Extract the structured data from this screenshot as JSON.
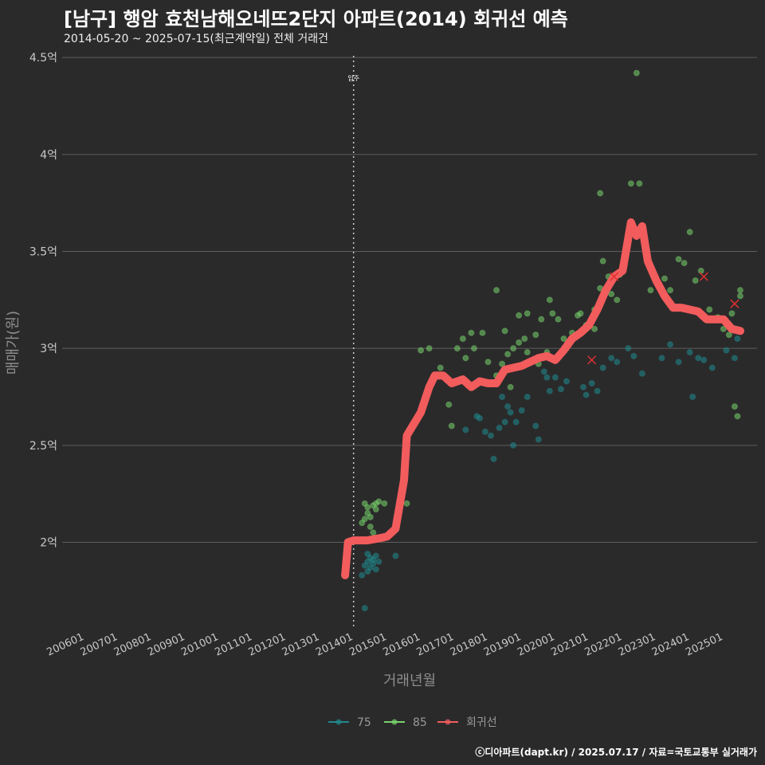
{
  "title": "[남구] 행암 효천남해오네뜨2단지 아파트(2014) 회귀선 예측",
  "subtitle": "2014-05-20 ~ 2025-07-15(최근계약일) 전체 거래건",
  "caption": "ⓒ디아파트(dapt.kr) / 2025.07.17 / 자료=국토교통부 실거래가",
  "colors": {
    "background": "#2b2a2b",
    "grid": "#5e5e5e",
    "s75": "#1f8a8e",
    "s85": "#77d36b",
    "reg": "#f25c5c",
    "cancel": "#e03030"
  },
  "chart_data": {
    "type": "scatter",
    "xlabel": "거래년월",
    "ylabel": "매매가(원)",
    "ylim": [
      1.55,
      4.55
    ],
    "xlim": [
      "2005-05-01",
      "2025-12-31"
    ],
    "grid": true,
    "legend_position": "bottom",
    "y_ticks": [
      {
        "value": 2.0,
        "label": "2억"
      },
      {
        "value": 2.5,
        "label": "2.5억"
      },
      {
        "value": 3.0,
        "label": "3억"
      },
      {
        "value": 3.5,
        "label": "3.5억"
      },
      {
        "value": 4.0,
        "label": "4억"
      },
      {
        "value": 4.5,
        "label": "4.5억"
      }
    ],
    "x_ticks": [
      "200601",
      "200701",
      "200801",
      "200901",
      "201001",
      "201101",
      "201201",
      "201301",
      "201401",
      "201501",
      "201601",
      "201701",
      "201801",
      "201901",
      "202001",
      "202101",
      "202201",
      "202301",
      "202401",
      "202501"
    ],
    "vline": {
      "x": "2014-01",
      "label": "입주"
    },
    "legend": [
      {
        "key": "75",
        "label": "75"
      },
      {
        "key": "85",
        "label": "85"
      },
      {
        "key": "reg",
        "label": "회귀선"
      }
    ],
    "series": [
      {
        "name": "75",
        "points": [
          [
            "2014-04",
            1.83
          ],
          [
            "2014-05",
            1.66
          ],
          [
            "2014-05",
            1.88
          ],
          [
            "2014-06",
            1.9
          ],
          [
            "2014-06",
            1.85
          ],
          [
            "2014-07",
            1.92
          ],
          [
            "2014-07",
            1.87
          ],
          [
            "2014-08",
            1.89
          ],
          [
            "2014-08",
            1.91
          ],
          [
            "2014-09",
            1.93
          ],
          [
            "2014-10",
            1.9
          ],
          [
            "2014-06",
            1.94
          ],
          [
            "2014-09",
            1.86
          ],
          [
            "2015-04",
            1.93
          ],
          [
            "2017-05",
            2.58
          ],
          [
            "2017-09",
            2.65
          ],
          [
            "2017-10",
            2.64
          ],
          [
            "2017-12",
            2.57
          ],
          [
            "2018-02",
            2.55
          ],
          [
            "2018-03",
            2.43
          ],
          [
            "2018-05",
            2.59
          ],
          [
            "2018-06",
            2.75
          ],
          [
            "2018-07",
            2.62
          ],
          [
            "2018-08",
            2.7
          ],
          [
            "2018-09",
            2.67
          ],
          [
            "2018-10",
            2.5
          ],
          [
            "2018-11",
            2.62
          ],
          [
            "2019-01",
            2.68
          ],
          [
            "2019-03",
            2.75
          ],
          [
            "2019-06",
            2.6
          ],
          [
            "2019-07",
            2.53
          ],
          [
            "2019-09",
            2.88
          ],
          [
            "2019-10",
            2.85
          ],
          [
            "2019-11",
            2.78
          ],
          [
            "2020-01",
            2.85
          ],
          [
            "2020-03",
            2.79
          ],
          [
            "2020-05",
            2.83
          ],
          [
            "2020-11",
            2.8
          ],
          [
            "2020-12",
            2.76
          ],
          [
            "2021-02",
            2.82
          ],
          [
            "2021-04",
            2.78
          ],
          [
            "2021-06",
            2.9
          ],
          [
            "2021-09",
            2.95
          ],
          [
            "2021-11",
            2.93
          ],
          [
            "2022-03",
            3.0
          ],
          [
            "2022-05",
            2.96
          ],
          [
            "2022-08",
            2.87
          ],
          [
            "2023-03",
            2.95
          ],
          [
            "2023-06",
            3.02
          ],
          [
            "2023-09",
            2.93
          ],
          [
            "2024-01",
            2.98
          ],
          [
            "2024-02",
            2.75
          ],
          [
            "2024-04",
            2.95
          ],
          [
            "2024-06",
            2.94
          ],
          [
            "2024-09",
            2.9
          ],
          [
            "2025-02",
            2.99
          ],
          [
            "2025-05",
            2.95
          ],
          [
            "2025-06",
            3.05
          ]
        ]
      },
      {
        "name": "85",
        "points": [
          [
            "2014-04",
            2.1
          ],
          [
            "2014-05",
            2.12
          ],
          [
            "2014-05",
            2.2
          ],
          [
            "2014-06",
            2.18
          ],
          [
            "2014-06",
            2.15
          ],
          [
            "2014-07",
            2.08
          ],
          [
            "2014-07",
            2.13
          ],
          [
            "2014-08",
            2.19
          ],
          [
            "2014-08",
            2.05
          ],
          [
            "2014-09",
            2.17
          ],
          [
            "2014-09",
            2.2
          ],
          [
            "2014-10",
            2.21
          ],
          [
            "2014-12",
            2.2
          ],
          [
            "2015-08",
            2.2
          ],
          [
            "2016-01",
            2.99
          ],
          [
            "2016-04",
            3.0
          ],
          [
            "2016-08",
            2.9
          ],
          [
            "2016-11",
            2.71
          ],
          [
            "2016-12",
            2.6
          ],
          [
            "2017-02",
            3.0
          ],
          [
            "2017-04",
            3.05
          ],
          [
            "2017-05",
            2.95
          ],
          [
            "2017-07",
            3.08
          ],
          [
            "2017-08",
            3.0
          ],
          [
            "2017-11",
            3.08
          ],
          [
            "2018-01",
            2.93
          ],
          [
            "2018-04",
            2.86
          ],
          [
            "2018-06",
            2.92
          ],
          [
            "2018-07",
            3.09
          ],
          [
            "2018-08",
            2.97
          ],
          [
            "2018-09",
            2.8
          ],
          [
            "2018-10",
            3.0
          ],
          [
            "2018-12",
            3.03
          ],
          [
            "2018-12",
            3.17
          ],
          [
            "2019-02",
            3.05
          ],
          [
            "2019-03",
            2.98
          ],
          [
            "2019-03",
            3.18
          ],
          [
            "2019-05",
            2.94
          ],
          [
            "2019-06",
            3.07
          ],
          [
            "2019-07",
            2.92
          ],
          [
            "2019-08",
            3.15
          ],
          [
            "2019-10",
            2.98
          ],
          [
            "2019-11",
            3.25
          ],
          [
            "2020-02",
            3.15
          ],
          [
            "2020-04",
            3.05
          ],
          [
            "2020-07",
            3.08
          ],
          [
            "2020-09",
            3.17
          ],
          [
            "2020-12",
            3.12
          ],
          [
            "2021-03",
            3.2
          ],
          [
            "2021-05",
            3.31
          ],
          [
            "2021-06",
            3.45
          ],
          [
            "2021-08",
            3.37
          ],
          [
            "2021-10",
            3.37
          ],
          [
            "2021-12",
            3.38
          ],
          [
            "2022-02",
            3.49
          ],
          [
            "2022-04",
            3.85
          ],
          [
            "2022-07",
            3.85
          ],
          [
            "2022-09",
            3.55
          ],
          [
            "2022-11",
            3.3
          ],
          [
            "2023-04",
            3.36
          ],
          [
            "2023-06",
            3.3
          ],
          [
            "2023-09",
            3.46
          ],
          [
            "2023-11",
            3.44
          ],
          [
            "2024-01",
            3.6
          ],
          [
            "2024-03",
            3.35
          ],
          [
            "2024-05",
            3.4
          ],
          [
            "2024-08",
            3.2
          ],
          [
            "2024-11",
            3.16
          ],
          [
            "2025-01",
            3.1
          ],
          [
            "2025-03",
            3.07
          ],
          [
            "2025-04",
            3.18
          ],
          [
            "2025-05",
            2.7
          ],
          [
            "2025-06",
            2.65
          ],
          [
            "2025-07",
            3.3
          ],
          [
            "2025-07",
            3.27
          ],
          [
            "2022-04",
            3.62
          ],
          [
            "2022-06",
            4.42
          ],
          [
            "2021-05",
            3.8
          ],
          [
            "2020-10",
            3.18
          ],
          [
            "2021-11",
            3.25
          ],
          [
            "2021-09",
            3.28
          ],
          [
            "2021-03",
            3.1
          ],
          [
            "2020-05",
            3.0
          ],
          [
            "2019-12",
            3.18
          ],
          [
            "2018-04",
            3.3
          ]
        ]
      },
      {
        "name": "회귀선",
        "points": [
          [
            "2013-10",
            1.83
          ],
          [
            "2013-11",
            2.0
          ],
          [
            "2014-01",
            2.01
          ],
          [
            "2014-06",
            2.01
          ],
          [
            "2014-10",
            2.02
          ],
          [
            "2015-01",
            2.03
          ],
          [
            "2015-04",
            2.07
          ],
          [
            "2015-07",
            2.32
          ],
          [
            "2015-08",
            2.55
          ],
          [
            "2016-01",
            2.67
          ],
          [
            "2016-04",
            2.8
          ],
          [
            "2016-06",
            2.86
          ],
          [
            "2016-09",
            2.86
          ],
          [
            "2016-12",
            2.82
          ],
          [
            "2017-04",
            2.84
          ],
          [
            "2017-07",
            2.8
          ],
          [
            "2017-10",
            2.83
          ],
          [
            "2018-01",
            2.82
          ],
          [
            "2018-04",
            2.82
          ],
          [
            "2018-07",
            2.89
          ],
          [
            "2018-10",
            2.9
          ],
          [
            "2019-01",
            2.91
          ],
          [
            "2019-04",
            2.93
          ],
          [
            "2019-07",
            2.95
          ],
          [
            "2019-10",
            2.96
          ],
          [
            "2020-01",
            2.94
          ],
          [
            "2020-04",
            2.99
          ],
          [
            "2020-07",
            3.05
          ],
          [
            "2020-10",
            3.08
          ],
          [
            "2021-01",
            3.12
          ],
          [
            "2021-04",
            3.2
          ],
          [
            "2021-07",
            3.3
          ],
          [
            "2021-10",
            3.37
          ],
          [
            "2022-01",
            3.4
          ],
          [
            "2022-04",
            3.65
          ],
          [
            "2022-06",
            3.58
          ],
          [
            "2022-08",
            3.63
          ],
          [
            "2022-10",
            3.45
          ],
          [
            "2023-01",
            3.35
          ],
          [
            "2023-04",
            3.27
          ],
          [
            "2023-07",
            3.21
          ],
          [
            "2023-10",
            3.21
          ],
          [
            "2024-01",
            3.2
          ],
          [
            "2024-04",
            3.19
          ],
          [
            "2024-07",
            3.15
          ],
          [
            "2024-10",
            3.15
          ],
          [
            "2025-01",
            3.15
          ],
          [
            "2025-04",
            3.1
          ],
          [
            "2025-07",
            3.09
          ]
        ]
      }
    ],
    "cancelled": [
      [
        "2021-02",
        2.94
      ],
      [
        "2021-10",
        3.37
      ],
      [
        "2024-06",
        3.37
      ],
      [
        "2025-05",
        3.23
      ]
    ]
  }
}
